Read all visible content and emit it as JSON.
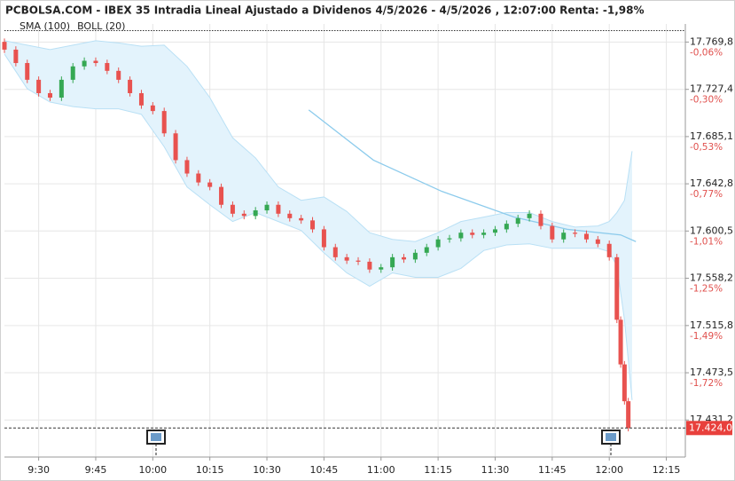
{
  "chart_data": {
    "type": "candlestick",
    "title": "PCBOLSA.COM - IBEX 35 Intradia Lineal Ajustado a Dividenos 4/5/2026 - 4/5/2026 , 12:07:00 Renta: -1,98%",
    "legend": [
      {
        "name": "SMA (100)",
        "color": "#8ccbec"
      },
      {
        "name": "BOLL (20)",
        "color": "#c4c4c4"
      }
    ],
    "x": [
      561,
      564,
      567,
      570,
      573,
      576,
      579,
      582,
      585,
      588,
      591,
      594,
      597,
      600,
      603,
      606,
      609,
      612,
      615,
      618,
      621,
      624,
      627,
      630,
      633,
      636,
      639,
      642,
      645,
      648,
      651,
      654,
      657,
      660,
      663,
      666,
      669,
      672,
      675,
      678,
      681,
      684,
      687,
      690,
      693,
      696,
      699,
      702,
      705,
      708,
      711,
      714,
      717,
      720,
      722,
      723,
      724,
      725
    ],
    "open": [
      17770,
      17763,
      17751,
      17736,
      17724,
      17720,
      17736,
      17748,
      17753,
      17751,
      17744,
      17736,
      17724,
      17713,
      17708,
      17688,
      17664,
      17652,
      17644,
      17640,
      17624,
      17616,
      17614,
      17619,
      17624,
      17616,
      17612,
      17610,
      17602,
      17586,
      17577,
      17574,
      17573,
      17566,
      17568,
      17577,
      17575,
      17581,
      17586,
      17593,
      17594,
      17599,
      17597,
      17599,
      17602,
      17607,
      17612,
      17616,
      17605,
      17593,
      17599,
      17598,
      17593,
      17589,
      17577,
      17521,
      17481,
      17448
    ],
    "high": [
      17773,
      17766,
      17754,
      17739,
      17727,
      17739,
      17751,
      17756,
      17756,
      17754,
      17747,
      17739,
      17727,
      17716,
      17711,
      17691,
      17667,
      17655,
      17647,
      17643,
      17627,
      17619,
      17622,
      17627,
      17627,
      17619,
      17615,
      17613,
      17605,
      17589,
      17580,
      17577,
      17576,
      17571,
      17580,
      17580,
      17584,
      17589,
      17596,
      17597,
      17602,
      17602,
      17602,
      17605,
      17610,
      17615,
      17619,
      17619,
      17608,
      17602,
      17602,
      17601,
      17596,
      17592,
      17580,
      17524,
      17484,
      17451
    ],
    "low": [
      17760,
      17748,
      17733,
      17721,
      17717,
      17717,
      17733,
      17745,
      17748,
      17741,
      17733,
      17721,
      17710,
      17705,
      17685,
      17661,
      17649,
      17641,
      17637,
      17621,
      17613,
      17611,
      17611,
      17616,
      17613,
      17609,
      17607,
      17599,
      17583,
      17574,
      17571,
      17570,
      17563,
      17563,
      17565,
      17572,
      17572,
      17578,
      17583,
      17590,
      17591,
      17594,
      17594,
      17596,
      17599,
      17604,
      17609,
      17602,
      17590,
      17590,
      17595,
      17590,
      17586,
      17574,
      17518,
      17478,
      17445,
      17421
    ],
    "close": [
      17763,
      17751,
      17736,
      17724,
      17720,
      17736,
      17748,
      17753,
      17751,
      17744,
      17736,
      17724,
      17713,
      17708,
      17688,
      17664,
      17652,
      17644,
      17640,
      17624,
      17616,
      17614,
      17619,
      17624,
      17616,
      17612,
      17610,
      17602,
      17586,
      17577,
      17574,
      17573,
      17566,
      17568,
      17577,
      17575,
      17581,
      17586,
      17593,
      17594,
      17599,
      17597,
      17599,
      17602,
      17607,
      17612,
      17616,
      17605,
      17593,
      17599,
      17598,
      17593,
      17589,
      17577,
      17521,
      17481,
      17448,
      17424
    ],
    "up_color": "#35a853",
    "down_color": "#e8524f",
    "sma": {
      "x": [
        641,
        658,
        676,
        695,
        709,
        723,
        727
      ],
      "values": [
        17709,
        17664,
        17636,
        17613,
        17602,
        17597,
        17591
      ],
      "color": "#8ccbec"
    },
    "boll": {
      "x": [
        561,
        567,
        573,
        579,
        585,
        591,
        597,
        603,
        609,
        615,
        621,
        627,
        633,
        639,
        645,
        651,
        657,
        663,
        669,
        675,
        681,
        687,
        693,
        699,
        705,
        711,
        717,
        720,
        722,
        724,
        726
      ],
      "upper": [
        17771,
        17767,
        17763,
        17767,
        17771,
        17769,
        17766,
        17767,
        17748,
        17720,
        17684,
        17666,
        17640,
        17628,
        17631,
        17618,
        17599,
        17593,
        17591,
        17599,
        17609,
        17613,
        17617,
        17617,
        17609,
        17604,
        17605,
        17609,
        17617,
        17628,
        17672
      ],
      "lower": [
        17759,
        17728,
        17716,
        17712,
        17710,
        17710,
        17705,
        17676,
        17640,
        17624,
        17609,
        17617,
        17609,
        17601,
        17581,
        17563,
        17551,
        17563,
        17559,
        17559,
        17567,
        17583,
        17588,
        17589,
        17585,
        17585,
        17585,
        17582,
        17569,
        17521,
        17449
      ],
      "color": "#b9e0f5",
      "fill": "#e3f3fc"
    },
    "reference_line": 17780,
    "current_price": {
      "value": 17424,
      "label": "17.424,0"
    },
    "xlim": [
      561,
      740
    ],
    "xticks": [
      {
        "value": 570,
        "label": "9:30"
      },
      {
        "value": 585,
        "label": "9:45"
      },
      {
        "value": 600,
        "label": "10:00"
      },
      {
        "value": 615,
        "label": "10:15"
      },
      {
        "value": 630,
        "label": "10:30"
      },
      {
        "value": 645,
        "label": "10:45"
      },
      {
        "value": 660,
        "label": "11:00"
      },
      {
        "value": 675,
        "label": "11:15"
      },
      {
        "value": 690,
        "label": "11:30"
      },
      {
        "value": 705,
        "label": "11:45"
      },
      {
        "value": 720,
        "label": "12:00"
      },
      {
        "value": 735,
        "label": "12:15"
      }
    ],
    "ylim": [
      17398,
      17786
    ],
    "yticks": [
      {
        "value": 17769.8,
        "label": "17.769,8"
      },
      {
        "value": 17727.4,
        "label": "17.727,4"
      },
      {
        "value": 17685.1,
        "label": "17.685,1"
      },
      {
        "value": 17642.8,
        "label": "17.642,8"
      },
      {
        "value": 17600.5,
        "label": "17.600,5"
      },
      {
        "value": 17558.2,
        "label": "17.558,2"
      },
      {
        "value": 17515.8,
        "label": "17.515,8"
      },
      {
        "value": 17473.5,
        "label": "17.473,5"
      },
      {
        "value": 17431.2,
        "label": "17.431,2"
      }
    ],
    "ytick_pct_labels": [
      "-0,06%",
      "-0,30%",
      "-0,53%",
      "-0,77%",
      "-1,01%",
      "-1,25%",
      "-1,49%",
      "-1,72%"
    ],
    "grid": true
  }
}
